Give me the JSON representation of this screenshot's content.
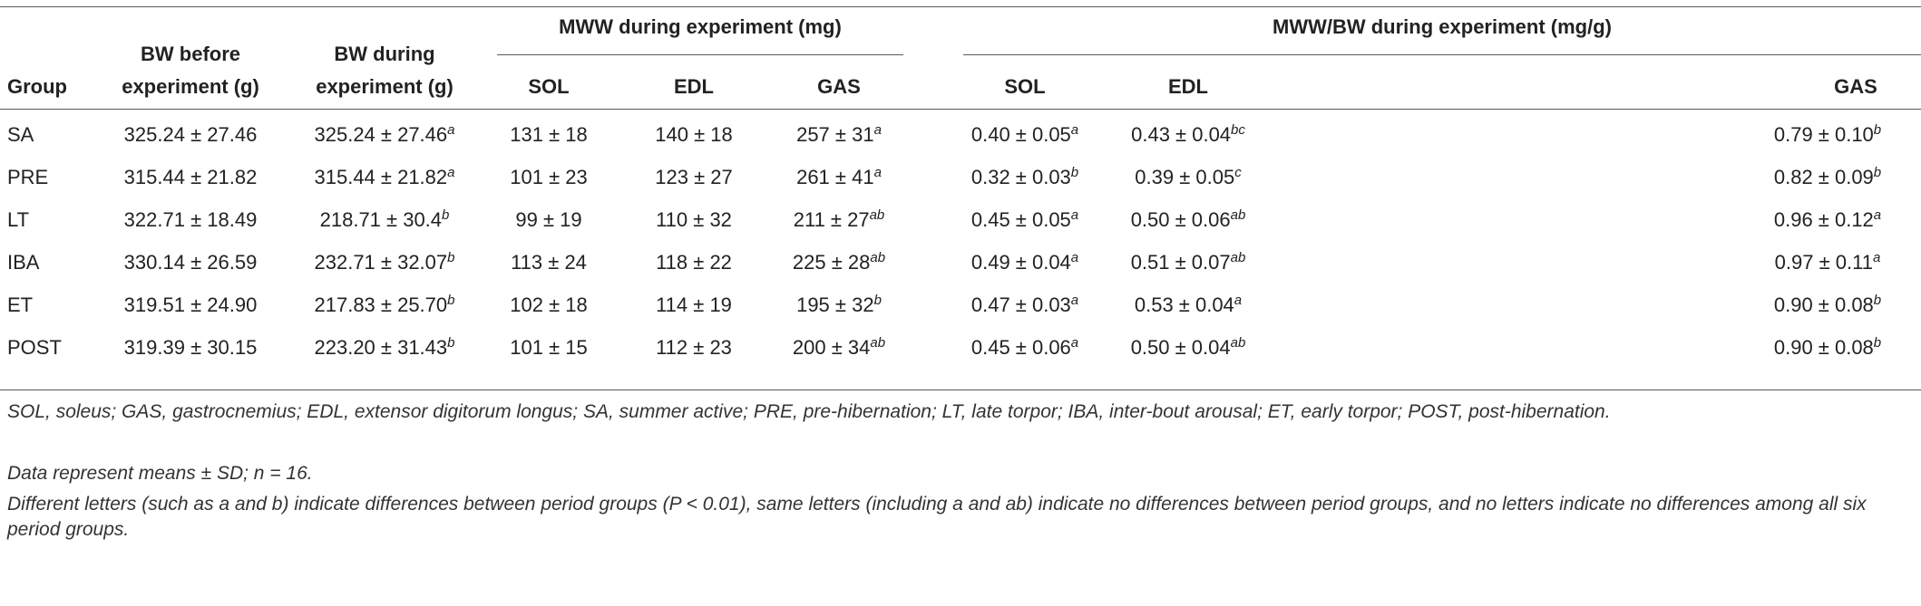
{
  "table": {
    "group_header": {
      "mww": "MWW during experiment (mg)",
      "mwwbw": "MWW/BW during experiment (mg/g)"
    },
    "columns": {
      "group": "Group",
      "bw_before_1": "BW before",
      "bw_before_2": "experiment (g)",
      "bw_during_1": "BW during",
      "bw_during_2": "experiment (g)",
      "sol": "SOL",
      "edl": "EDL",
      "gas": "GAS",
      "sol2": "SOL",
      "edl2": "EDL",
      "gas2": "GAS"
    },
    "rows": [
      {
        "group": "SA",
        "bwb": "325.24 ± 27.46",
        "bwd": "325.24 ± 27.46",
        "bwd_s": "a",
        "sol": "131 ± 18",
        "edl": "140 ± 18",
        "gas": "257 ± 31",
        "gas_s": "a",
        "rsol": "0.40 ± 0.05",
        "rsol_s": "a",
        "redl": "0.43 ± 0.04",
        "redl_s": "bc",
        "rgas": "0.79 ± 0.10",
        "rgas_s": "b"
      },
      {
        "group": "PRE",
        "bwb": "315.44 ± 21.82",
        "bwd": "315.44 ± 21.82",
        "bwd_s": "a",
        "sol": "101 ± 23",
        "edl": "123 ± 27",
        "gas": "261 ± 41",
        "gas_s": "a",
        "rsol": "0.32 ± 0.03",
        "rsol_s": "b",
        "redl": "0.39 ± 0.05",
        "redl_s": "c",
        "rgas": "0.82 ± 0.09",
        "rgas_s": "b"
      },
      {
        "group": "LT",
        "bwb": "322.71 ± 18.49",
        "bwd": "218.71 ± 30.4",
        "bwd_s": "b",
        "sol": "99 ± 19",
        "edl": "110 ± 32",
        "gas": "211 ± 27",
        "gas_s": "ab",
        "rsol": "0.45 ± 0.05",
        "rsol_s": "a",
        "redl": "0.50 ± 0.06",
        "redl_s": "ab",
        "rgas": "0.96 ± 0.12",
        "rgas_s": "a"
      },
      {
        "group": "IBA",
        "bwb": "330.14 ± 26.59",
        "bwd": "232.71 ± 32.07",
        "bwd_s": "b",
        "sol": "113 ± 24",
        "edl": "118 ± 22",
        "gas": "225 ± 28",
        "gas_s": "ab",
        "rsol": "0.49 ± 0.04",
        "rsol_s": "a",
        "redl": "0.51 ± 0.07",
        "redl_s": "ab",
        "rgas": "0.97 ± 0.11",
        "rgas_s": "a"
      },
      {
        "group": "ET",
        "bwb": "319.51 ± 24.90",
        "bwd": "217.83 ± 25.70",
        "bwd_s": "b",
        "sol": "102 ± 18",
        "edl": "114 ± 19",
        "gas": "195 ± 32",
        "gas_s": "b",
        "rsol": "0.47 ± 0.03",
        "rsol_s": "a",
        "redl": "0.53 ± 0.04",
        "redl_s": "a",
        "rgas": "0.90 ± 0.08",
        "rgas_s": "b"
      },
      {
        "group": "POST",
        "bwb": "319.39 ± 30.15",
        "bwd": "223.20 ± 31.43",
        "bwd_s": "b",
        "sol": "101 ± 15",
        "edl": "112 ± 23",
        "gas": "200 ± 34",
        "gas_s": "ab",
        "rsol": "0.45 ± 0.06",
        "rsol_s": "a",
        "redl": "0.50 ± 0.04",
        "redl_s": "ab",
        "rgas": "0.90 ± 0.08",
        "rgas_s": "b"
      }
    ]
  },
  "notes": {
    "abbreviations": "SOL, soleus; GAS, gastrocnemius; EDL, extensor digitorum longus; SA, summer active; PRE, pre-hibernation; LT, late torpor; IBA, inter-bout arousal; ET, early torpor; POST, post-hibernation.",
    "data": "Data represent means ± SD; n = 16.",
    "letters": "Different letters (such as a and b) indicate differences between period groups (P < 0.01), same letters (including a and ab) indicate no differences between period groups, and no letters indicate no differences among all six period groups."
  }
}
